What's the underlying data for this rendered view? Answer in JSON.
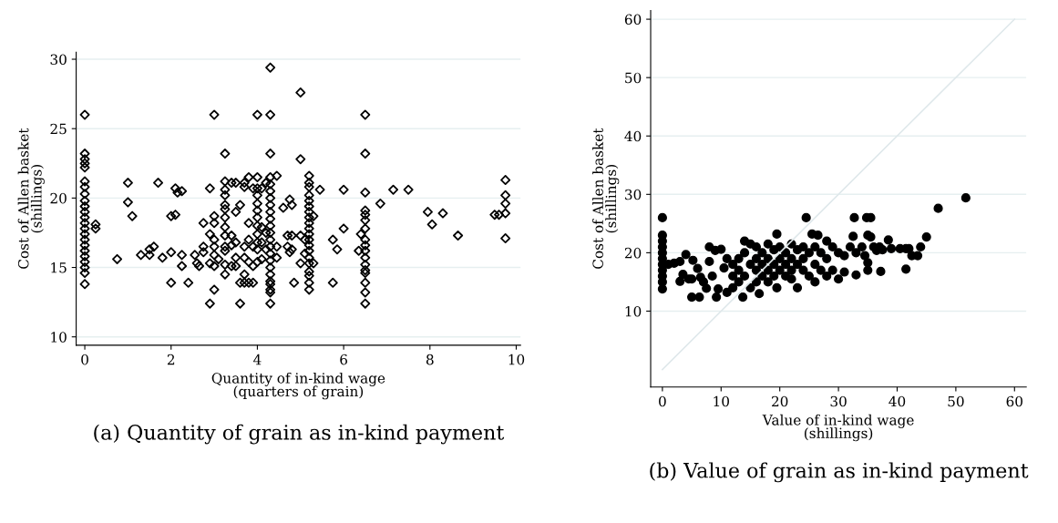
{
  "chart_data": [
    {
      "type": "scatter",
      "title": "(a) Quantity of grain as in-kind payment",
      "xlabel": "Quantity of in-kind wage\n(quarters of grain)",
      "ylabel": "Cost of Allen basket\n(shillings)",
      "xlim": [
        -0.2,
        10.1
      ],
      "ylim": [
        9.4,
        30.5
      ],
      "xticks": [
        0,
        2,
        4,
        6,
        8,
        10
      ],
      "yticks": [
        10,
        15,
        20,
        25,
        30
      ],
      "grid": "y",
      "marker": "diamond",
      "legend": false,
      "series": [
        {
          "color": "#000000",
          "x": [
            0,
            0,
            0,
            0,
            0,
            0,
            0,
            0,
            0,
            0,
            0,
            0,
            0,
            0,
            0,
            0,
            0,
            0,
            0,
            0,
            0,
            0,
            0,
            0.25,
            0.25,
            0.75,
            1,
            1,
            1.1,
            1.3,
            1.5,
            1.5,
            1.6,
            1.7,
            1.8,
            2,
            2,
            2,
            2.1,
            2.1,
            2.15,
            2.25,
            2.25,
            2.25,
            2.4,
            2.55,
            2.6,
            2.65,
            2.75,
            2.75,
            2.75,
            2.9,
            2.9,
            2.9,
            2.9,
            3,
            3,
            3,
            3,
            3,
            3,
            3,
            3,
            3.1,
            3.25,
            3.25,
            3.25,
            3.25,
            3.25,
            3.25,
            3.25,
            3.25,
            3.25,
            3.25,
            3.25,
            3.25,
            3.25,
            3.4,
            3.4,
            3.4,
            3.4,
            3.5,
            3.5,
            3.5,
            3.5,
            3.5,
            3.6,
            3.6,
            3.6,
            3.7,
            3.7,
            3.7,
            3.7,
            3.7,
            3.7,
            3.8,
            3.8,
            3.8,
            3.8,
            3.8,
            3.9,
            3.9,
            3.9,
            3.9,
            4,
            4,
            4,
            4,
            4,
            4,
            4,
            4,
            4,
            4,
            4,
            4,
            4.1,
            4.1,
            4.1,
            4.1,
            4.2,
            4.2,
            4.2,
            4.3,
            4.3,
            4.3,
            4.3,
            4.3,
            4.3,
            4.3,
            4.3,
            4.3,
            4.3,
            4.3,
            4.3,
            4.3,
            4.3,
            4.3,
            4.3,
            4.3,
            4.3,
            4.3,
            4.3,
            4.3,
            4.3,
            4.3,
            4.45,
            4.45,
            4.45,
            4.6,
            4.7,
            4.7,
            4.75,
            4.75,
            4.8,
            4.8,
            4.8,
            4.85,
            5,
            5,
            5,
            5,
            5.1,
            5.1,
            5.2,
            5.2,
            5.2,
            5.2,
            5.2,
            5.2,
            5.2,
            5.2,
            5.2,
            5.2,
            5.2,
            5.2,
            5.2,
            5.2,
            5.2,
            5.2,
            5.2,
            5.2,
            5.2,
            5.2,
            5.3,
            5.3,
            5.45,
            5.75,
            5.75,
            5.85,
            6,
            6,
            6.35,
            6.4,
            6.5,
            6.5,
            6.5,
            6.5,
            6.5,
            6.5,
            6.5,
            6.5,
            6.5,
            6.5,
            6.5,
            6.5,
            6.5,
            6.5,
            6.5,
            6.5,
            6.5,
            6.85,
            7.15,
            7.5,
            7.95,
            8.05,
            8.3,
            8.65,
            9.5,
            9.6,
            9.75,
            9.75,
            9.75,
            9.75,
            9.75
          ],
          "values": [
            26,
            23.2,
            22.8,
            22.5,
            22.2,
            21.2,
            20.8,
            20.3,
            19.8,
            19.4,
            19,
            18.6,
            18.2,
            17.8,
            17.4,
            17,
            16.6,
            16.2,
            15.8,
            15.4,
            15,
            14.6,
            13.8,
            18.1,
            17.8,
            15.6,
            21.1,
            19.7,
            18.7,
            15.9,
            16.3,
            15.9,
            16.5,
            21.1,
            15.7,
            18.7,
            16.1,
            13.9,
            20.7,
            18.8,
            20.4,
            20.5,
            15.9,
            15.1,
            13.9,
            15.9,
            15.3,
            15.1,
            18.2,
            16.5,
            16.1,
            20.7,
            17.4,
            15.3,
            12.4,
            26,
            18.7,
            18.2,
            17,
            16.5,
            15.9,
            15.1,
            13.4,
            15.6,
            23.2,
            21.2,
            20.6,
            20.2,
            19.5,
            19.2,
            18.6,
            17.9,
            17.3,
            16.5,
            16.2,
            15.2,
            14.5,
            21.1,
            17.3,
            16.6,
            15.1,
            21.1,
            19,
            16.8,
            15.7,
            15.1,
            19.5,
            13.9,
            12.4,
            21.1,
            20.8,
            16.5,
            15.7,
            14.5,
            13.9,
            21.5,
            18.2,
            17,
            15.4,
            13.9,
            20.7,
            16.5,
            15.1,
            13.9,
            26,
            21.5,
            20.7,
            20.2,
            19.6,
            19.1,
            18.6,
            18,
            17.4,
            16.8,
            16.3,
            15.4,
            20.7,
            17.9,
            16.8,
            15.6,
            21.1,
            17.5,
            16.3,
            29.4,
            26,
            23.2,
            21.5,
            21,
            20.5,
            20,
            19.5,
            19,
            18.5,
            18,
            17.5,
            17,
            16.5,
            16,
            15.5,
            15,
            14.5,
            14,
            13.8,
            13.4,
            13.2,
            12.4,
            21.6,
            16.5,
            15.7,
            19.3,
            17.3,
            16.5,
            19.9,
            16.1,
            19.5,
            17.3,
            16.3,
            13.9,
            27.6,
            22.8,
            17.3,
            15.3,
            17,
            16,
            21.6,
            21.1,
            20.8,
            20.2,
            19.8,
            19.4,
            19,
            18.6,
            18.2,
            17.8,
            17.4,
            17,
            16.6,
            16.2,
            15.7,
            15.3,
            14.7,
            14.4,
            13.9,
            13.4,
            18.7,
            15.3,
            20.6,
            17,
            13.9,
            16.3,
            20.6,
            17.8,
            16.2,
            17.4,
            26,
            23.2,
            20.4,
            19.1,
            18.8,
            18.4,
            17.8,
            17,
            16.6,
            16.2,
            15.7,
            15.2,
            14.8,
            14.6,
            13.9,
            13.2,
            12.4,
            19.6,
            20.6,
            20.6,
            19,
            18.1,
            18.9,
            17.3,
            18.8,
            18.8,
            21.3,
            20.2,
            19.6,
            18.9,
            17.1
          ]
        }
      ]
    },
    {
      "type": "scatter",
      "title": "(b) Value of grain as in-kind payment",
      "xlabel": "Value of in-kind wage\n(shillings)",
      "ylabel": "Cost of Allen basket\n(shillings)",
      "xlim": [
        -2,
        62
      ],
      "ylim": [
        -3,
        61.5
      ],
      "xticks": [
        0,
        10,
        20,
        30,
        40,
        50,
        60
      ],
      "yticks": [
        10,
        20,
        30,
        40,
        50,
        60
      ],
      "grid": "y",
      "legend": false,
      "series": [
        {
          "color": "#000000",
          "marker": "circle",
          "x": [
            0,
            0,
            0,
            0,
            0,
            0,
            0,
            0,
            0,
            0,
            0,
            1,
            2,
            3,
            3.5,
            3,
            4,
            4.5,
            5,
            5,
            5.2,
            6,
            6.3,
            6.5,
            7,
            7.5,
            8,
            8,
            8.5,
            9,
            9.2,
            9.5,
            10,
            10.5,
            11,
            11,
            12,
            12,
            12,
            13,
            13,
            13,
            13.7,
            14,
            14,
            14,
            15,
            15,
            15,
            16,
            16,
            16,
            16,
            16.5,
            17,
            17,
            17,
            18,
            18,
            18,
            18,
            19,
            19,
            19,
            19.5,
            19.5,
            20,
            20,
            20,
            21,
            21,
            21,
            22,
            22,
            22,
            22,
            23,
            23,
            23,
            24,
            24,
            24,
            24.5,
            25,
            25,
            25.5,
            26,
            26,
            26,
            26.5,
            27,
            27,
            28,
            28,
            28,
            29,
            29,
            30,
            30,
            31,
            31,
            32,
            32.5,
            32.7,
            33,
            33,
            34,
            34.5,
            34.8,
            35,
            35,
            35,
            35.5,
            35.5,
            36,
            36.5,
            37,
            37.2,
            37.5,
            38.5,
            39,
            40.5,
            41.5,
            41.5,
            42,
            42.5,
            43.5,
            44,
            45,
            47,
            51.7
          ],
          "values": [
            26,
            23,
            22,
            21,
            20,
            19,
            18,
            17,
            16,
            15,
            13.8,
            18,
            18.2,
            18.5,
            16.3,
            15.1,
            19.7,
            15.5,
            15.5,
            12.4,
            18.7,
            17.3,
            12.4,
            15.8,
            15,
            13.9,
            21,
            18.5,
            16,
            20.4,
            12.4,
            13.8,
            20.6,
            17.4,
            13.2,
            19,
            18,
            16,
            14,
            19,
            17,
            15,
            12.4,
            22,
            20,
            16,
            21.5,
            18,
            14,
            21,
            19,
            17,
            15,
            13,
            20,
            18,
            16,
            21.5,
            19,
            17,
            15,
            20.5,
            18,
            16,
            14,
            23.2,
            21,
            19,
            17,
            20,
            18,
            16,
            21.5,
            19,
            17,
            15.5,
            20.5,
            18,
            14,
            21,
            19,
            17,
            26,
            20,
            16,
            23.2,
            21,
            18,
            15,
            23,
            20,
            17,
            22,
            19,
            16,
            21,
            17,
            20,
            15.5,
            19.5,
            16.7,
            21,
            22.8,
            26,
            16.2,
            20,
            21,
            19.5,
            26,
            23,
            17,
            18.3,
            26,
            22.7,
            21,
            20.4,
            21,
            16.8,
            20.5,
            22.2,
            20.7,
            20.7,
            20.7,
            17.2,
            20.7,
            19.5,
            19.5,
            21,
            22.7,
            27.6,
            29.4
          ]
        },
        {
          "type": "line",
          "marker": "none",
          "color": "#dfe8eb",
          "x": [
            0,
            60
          ],
          "values": [
            0,
            60
          ]
        }
      ]
    }
  ]
}
